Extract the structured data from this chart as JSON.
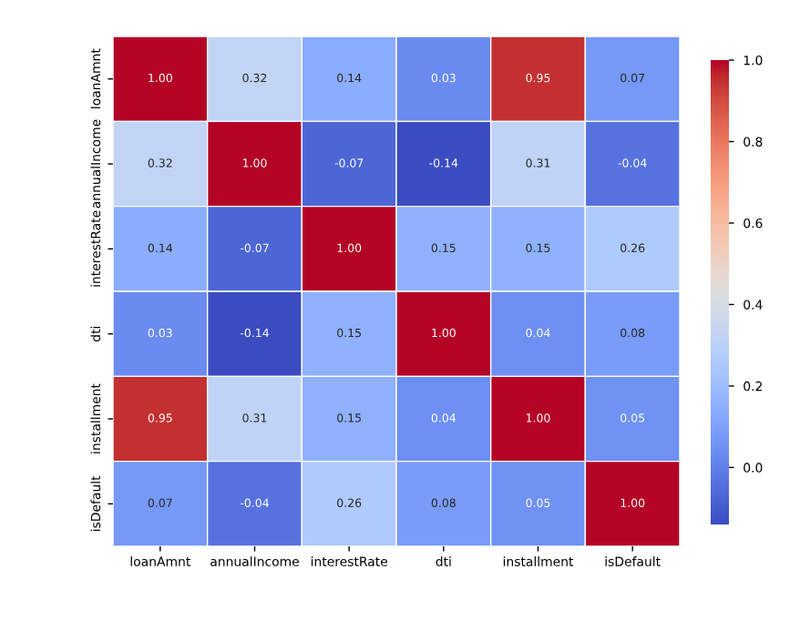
{
  "chart_data": {
    "type": "heatmap",
    "categories": [
      "loanAmnt",
      "annualIncome",
      "interestRate",
      "dti",
      "installment",
      "isDefault"
    ],
    "y_categories": [
      "loanAmnt",
      "annualIncome",
      "interestRate",
      "dti",
      "installment",
      "isDefault"
    ],
    "cells": [
      [
        1.0,
        0.32,
        0.14,
        0.03,
        0.95,
        0.07
      ],
      [
        0.32,
        1.0,
        -0.07,
        -0.14,
        0.31,
        -0.04
      ],
      [
        0.14,
        -0.07,
        1.0,
        0.15,
        0.15,
        0.26
      ],
      [
        0.03,
        -0.14,
        0.15,
        1.0,
        0.04,
        0.08
      ],
      [
        0.95,
        0.31,
        0.15,
        0.04,
        1.0,
        0.05
      ],
      [
        0.07,
        -0.04,
        0.26,
        0.08,
        0.05,
        1.0
      ]
    ],
    "cell_labels": [
      [
        "1.00",
        "0.32",
        "0.14",
        "0.03",
        "0.95",
        "0.07"
      ],
      [
        "0.32",
        "1.00",
        "-0.07",
        "-0.14",
        "0.31",
        "-0.04"
      ],
      [
        "0.14",
        "-0.07",
        "1.00",
        "0.15",
        "0.15",
        "0.26"
      ],
      [
        "0.03",
        "-0.14",
        "0.15",
        "1.00",
        "0.04",
        "0.08"
      ],
      [
        "0.95",
        "0.31",
        "0.15",
        "0.04",
        "1.00",
        "0.05"
      ],
      [
        "0.07",
        "-0.04",
        "0.26",
        "0.08",
        "0.05",
        "1.00"
      ]
    ],
    "clim": [
      -0.14,
      1.0
    ],
    "cticks": [
      {
        "value": 0.0,
        "label": "0.0"
      },
      {
        "value": 0.2,
        "label": "0.2"
      },
      {
        "value": 0.4,
        "label": "0.4"
      },
      {
        "value": 0.6,
        "label": "0.6"
      },
      {
        "value": 0.8,
        "label": "0.8"
      },
      {
        "value": 1.0,
        "label": "1.0"
      }
    ]
  }
}
